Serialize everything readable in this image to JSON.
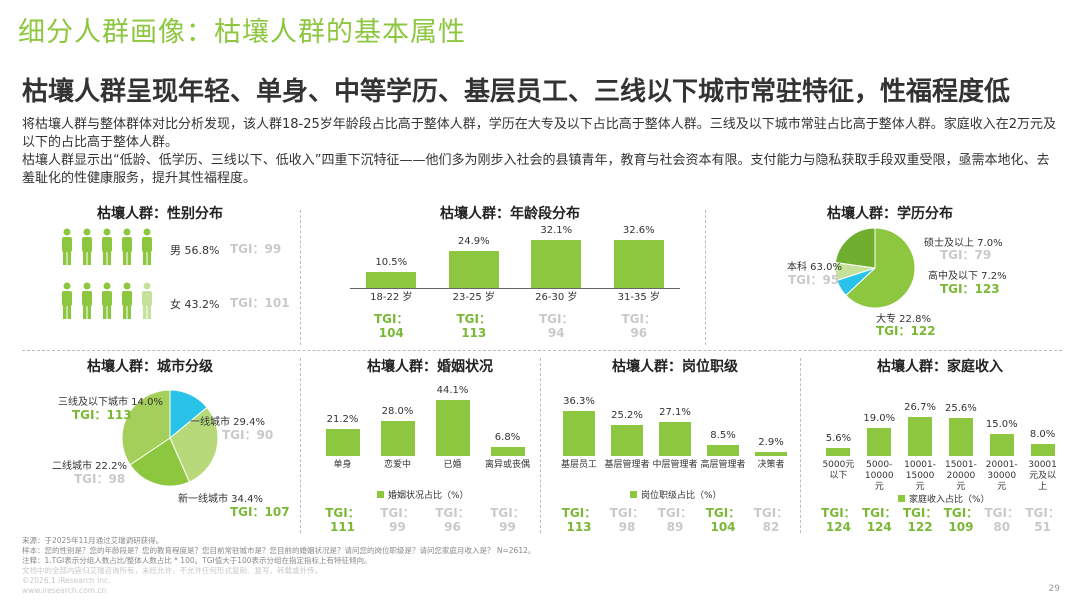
{
  "main_title": "细分人群画像：枯壤人群的基本属性",
  "subtitle": "枯壤人群呈现年轻、单身、中等学历、基层员工、三线以下城市常驻特征，性福程度低",
  "description": [
    "将枯壤人群与整体群体对比分析发现，该人群18-25岁年龄段占比高于整体人群，学历在大专及以下占比高于整体人群。三线及以下城市常驻占比高于整体人群。家庭收入在2万元及以下的占比高于整体人群。",
    "枯壤人群显示出“低龄、低学历、三线以下、低收入”四重下沉特征——他们多为刚步入社会的县镇青年，教育与社会资本有限。支付能力与隐私获取手段双重受限，亟需本地化、去羞耻化的性健康服务，提升其性福程度。"
  ],
  "colors": {
    "accent": "#8dc63f",
    "light": "#c6e29a",
    "cyan": "#29c3ea",
    "gray": "#c9c9c9"
  },
  "gender": {
    "title": "枯壤人群：性别分布",
    "male": {
      "label": "男 56.8%",
      "tgi": "TGI：99"
    },
    "female": {
      "label": "女 43.2%",
      "tgi": "TGI：101"
    }
  },
  "age": {
    "title": "枯壤人群：年龄段分布",
    "tgi_prefix": "TGI：",
    "chart_data": {
      "type": "bar",
      "categories": [
        "18-22 岁",
        "23-25 岁",
        "26-30 岁",
        "31-35 岁"
      ],
      "values": [
        10.5,
        24.9,
        32.1,
        32.6
      ],
      "value_labels": [
        "10.5%",
        "24.9%",
        "32.1%",
        "32.6%"
      ],
      "tgi": [
        "104",
        "113",
        "94",
        "96"
      ],
      "tgi_highlight": [
        true,
        true,
        false,
        false
      ]
    }
  },
  "education": {
    "title": "枯壤人群：学历分布",
    "chart_data": {
      "type": "pie",
      "labels": [
        "本科",
        "硕士及以上",
        "高中及以下",
        "大专"
      ],
      "values": [
        63.0,
        7.0,
        7.2,
        22.8
      ],
      "value_labels": [
        "本科 63.0%",
        "硕士及以上 7.0%",
        "高中及以下 7.2%",
        "大专 22.8%"
      ],
      "tgi": [
        "TGI：95",
        "TGI：79",
        "TGI：123",
        "TGI：122"
      ],
      "colors": [
        "#8dc63f",
        "#29c3ea",
        "#c6e29a",
        "#6fae2e"
      ]
    }
  },
  "city": {
    "title": "枯壤人群：城市分级",
    "chart_data": {
      "type": "pie",
      "labels": [
        "三线及以下城市",
        "一线城市",
        "二线城市",
        "新一线城市"
      ],
      "values": [
        14.0,
        29.4,
        22.2,
        34.4
      ],
      "value_labels": [
        "三线及以下城市 14.0%",
        "一线城市 29.4%",
        "二线城市 22.2%",
        "新一线城市 34.4%"
      ],
      "tgi": [
        "TGI：113",
        "TGI：90",
        "TGI：98",
        "TGI：107"
      ],
      "colors": [
        "#29c3ea",
        "#b7d97a",
        "#8dc63f",
        "#a4cf5a"
      ]
    }
  },
  "marriage": {
    "title": "枯壤人群：婚姻状况",
    "legend": "婚姻状况占比（%）",
    "tgi_prefix": "TGI：",
    "chart_data": {
      "type": "bar",
      "categories": [
        "单身",
        "恋爱中",
        "已婚",
        "离异或丧偶"
      ],
      "values": [
        21.2,
        28.0,
        44.1,
        6.8
      ],
      "value_labels": [
        "21.2%",
        "28.0%",
        "44.1%",
        "6.8%"
      ],
      "tgi": [
        "111",
        "99",
        "96",
        "99"
      ],
      "tgi_highlight": [
        true,
        false,
        false,
        false
      ]
    }
  },
  "position": {
    "title": "枯壤人群：岗位职级",
    "legend": "岗位职级占比（%）",
    "tgi_prefix": "TGI：",
    "chart_data": {
      "type": "bar",
      "categories": [
        "基层员工",
        "基层管理者",
        "中层管理者",
        "高层管理者",
        "决策者"
      ],
      "values": [
        36.3,
        25.2,
        27.1,
        8.5,
        2.9
      ],
      "value_labels": [
        "36.3%",
        "25.2%",
        "27.1%",
        "8.5%",
        "2.9%"
      ],
      "tgi": [
        "113",
        "98",
        "89",
        "104",
        "82"
      ],
      "tgi_highlight": [
        true,
        false,
        false,
        true,
        false
      ]
    }
  },
  "income": {
    "title": "枯壤人群：家庭收入",
    "legend": "家庭收入占比（%）",
    "tgi_prefix": "TGI：",
    "chart_data": {
      "type": "bar",
      "categories": [
        [
          "5000元",
          "以下"
        ],
        [
          "5000-",
          "10000",
          "元"
        ],
        [
          "10001-",
          "15000",
          "元"
        ],
        [
          "15001-",
          "20000",
          "元"
        ],
        [
          "20001-",
          "30000",
          "元"
        ],
        [
          "30001",
          "元及以",
          "上"
        ]
      ],
      "values": [
        5.6,
        19.0,
        26.7,
        25.6,
        15.0,
        8.0
      ],
      "value_labels": [
        "5.6%",
        "19.0%",
        "26.7%",
        "25.6%",
        "15.0%",
        "8.0%"
      ],
      "tgi": [
        "124",
        "124",
        "122",
        "109",
        "80",
        "51"
      ],
      "tgi_highlight": [
        true,
        true,
        true,
        true,
        false,
        false
      ]
    }
  },
  "footer": {
    "source": "来源：于2025年11月通过艾瑞调研获得。",
    "sample": "样本：您的性别是？您的年龄段是？您的教育程度是？您目前常驻城市是？您目前的婚姻状况是？请问您的岗位职级是？请问您家庭月收入是？ N=2612。",
    "note": "注释：1.TGI表示分组人数占比/整体人数占比 * 100。TGI值大于100表示分组在指定指标上有特征倾向。",
    "line4": "文档中的全部内容归艾瑞咨询所有，未经允许，不允许任何形式复制、复写、转载或外传。",
    "line5": "©2026.1 iResearch Inc.",
    "line6": "www.iresearch.com.cn",
    "page": "29"
  }
}
